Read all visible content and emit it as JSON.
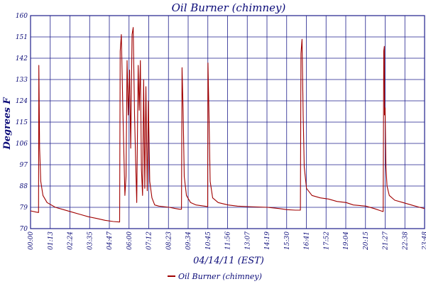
{
  "chart_data": {
    "type": "line",
    "title": "Oil Burner (chimney)",
    "xlabel": "04/14/11 (EST)",
    "ylabel": "Degrees F",
    "ylim": [
      70,
      160
    ],
    "yticks": [
      "70",
      "79",
      "88",
      "97",
      "106",
      "115",
      "124",
      "133",
      "142",
      "151",
      "160"
    ],
    "xticks": [
      "00:00",
      "01:13",
      "02:24",
      "03:35",
      "04:47",
      "06:00",
      "07:12",
      "08:23",
      "09:34",
      "10:45",
      "11:56",
      "13:07",
      "14:19",
      "15:30",
      "16:41",
      "17:52",
      "19:04",
      "20:15",
      "21:27",
      "22:38",
      "23:48"
    ],
    "grid": true,
    "legend": "bottom-center",
    "series": [
      {
        "name": "Oil Burner (chimney)",
        "color": "#a00000",
        "points": [
          [
            "00:00",
            77.5
          ],
          [
            "00:20",
            77.0
          ],
          [
            "00:29",
            76.8
          ],
          [
            "00:30",
            139
          ],
          [
            "00:33",
            104
          ],
          [
            "00:37",
            90
          ],
          [
            "00:45",
            84
          ],
          [
            "01:00",
            81
          ],
          [
            "01:30",
            79
          ],
          [
            "02:00",
            78
          ],
          [
            "02:30",
            77
          ],
          [
            "03:00",
            76
          ],
          [
            "03:30",
            75
          ],
          [
            "04:00",
            74.3
          ],
          [
            "04:30",
            73.5
          ],
          [
            "05:00",
            73
          ],
          [
            "05:23",
            72.8
          ],
          [
            "05:25",
            145
          ],
          [
            "05:29",
            152
          ],
          [
            "05:35",
            118
          ],
          [
            "05:42",
            84
          ],
          [
            "05:46",
            92
          ],
          [
            "05:50",
            141
          ],
          [
            "05:54",
            118
          ],
          [
            "05:59",
            137
          ],
          [
            "06:03",
            104
          ],
          [
            "06:08",
            152
          ],
          [
            "06:12",
            155
          ],
          [
            "06:17",
            118
          ],
          [
            "06:21",
            98
          ],
          [
            "06:25",
            81
          ],
          [
            "06:30",
            139
          ],
          [
            "06:34",
            120
          ],
          [
            "06:38",
            141
          ],
          [
            "06:42",
            95
          ],
          [
            "06:46",
            84
          ],
          [
            "06:50",
            133
          ],
          [
            "06:54",
            87
          ],
          [
            "06:58",
            130
          ],
          [
            "07:03",
            86
          ],
          [
            "07:07",
            124
          ],
          [
            "07:12",
            90
          ],
          [
            "07:20",
            83
          ],
          [
            "07:30",
            80
          ],
          [
            "07:45",
            79.5
          ],
          [
            "08:23",
            79
          ],
          [
            "08:45",
            78.5
          ],
          [
            "09:00",
            78.2
          ],
          [
            "09:07",
            78.2
          ],
          [
            "09:09",
            138
          ],
          [
            "09:13",
            120
          ],
          [
            "09:17",
            92
          ],
          [
            "09:25",
            84
          ],
          [
            "09:40",
            81
          ],
          [
            "10:00",
            80
          ],
          [
            "10:30",
            79.5
          ],
          [
            "10:42",
            79.3
          ],
          [
            "10:43",
            140
          ],
          [
            "10:47",
            116
          ],
          [
            "10:51",
            90
          ],
          [
            "11:00",
            83
          ],
          [
            "11:20",
            81
          ],
          [
            "11:56",
            80
          ],
          [
            "12:30",
            79.5
          ],
          [
            "13:07",
            79.3
          ],
          [
            "14:19",
            79
          ],
          [
            "15:00",
            78.5
          ],
          [
            "15:30",
            78
          ],
          [
            "16:00",
            77.8
          ],
          [
            "16:18",
            77.8
          ],
          [
            "16:20",
            144
          ],
          [
            "16:24",
            150
          ],
          [
            "16:28",
            118
          ],
          [
            "16:32",
            96
          ],
          [
            "16:40",
            87
          ],
          [
            "17:00",
            84
          ],
          [
            "17:30",
            83
          ],
          [
            "18:00",
            82.5
          ],
          [
            "18:30",
            81.5
          ],
          [
            "19:04",
            81
          ],
          [
            "19:30",
            80
          ],
          [
            "20:15",
            79.5
          ],
          [
            "20:45",
            78.5
          ],
          [
            "21:10",
            77.5
          ],
          [
            "21:18",
            77.2
          ],
          [
            "21:20",
            145
          ],
          [
            "21:22",
            147
          ],
          [
            "21:23",
            118
          ],
          [
            "21:25",
            121
          ],
          [
            "21:28",
            96
          ],
          [
            "21:32",
            88
          ],
          [
            "21:40",
            84
          ],
          [
            "22:00",
            82
          ],
          [
            "22:30",
            81
          ],
          [
            "23:00",
            80
          ],
          [
            "23:30",
            79
          ],
          [
            "23:48",
            78.5
          ]
        ]
      }
    ]
  }
}
